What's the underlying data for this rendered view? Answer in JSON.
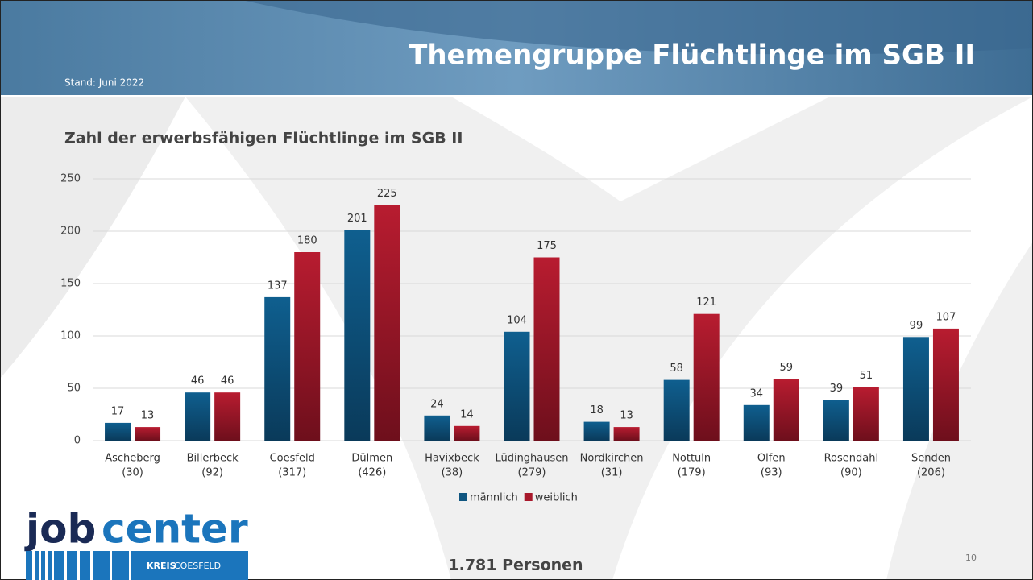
{
  "header": {
    "title": "Themengruppe Flüchtlinge im SGB II",
    "subtitle": "Stand: Juni 2022"
  },
  "chart_data": {
    "type": "bar",
    "title": "Zahl der erwerbsfähigen Flüchtlinge im SGB II",
    "categories": [
      [
        "Ascheberg",
        "(30)"
      ],
      [
        "Billerbeck",
        "(92)"
      ],
      [
        "Coesfeld",
        "(317)"
      ],
      [
        "Dülmen",
        "(426)"
      ],
      [
        "Havixbeck",
        "(38)"
      ],
      [
        "Lüdinghausen",
        "(279)"
      ],
      [
        "Nordkirchen",
        "(31)"
      ],
      [
        "Nottuln",
        "(179)"
      ],
      [
        "Olfen",
        "(93)"
      ],
      [
        "Rosendahl",
        "(90)"
      ],
      [
        "Senden",
        "(206)"
      ]
    ],
    "series": [
      {
        "name": "männlich",
        "color": "#0f5580",
        "values": [
          17,
          46,
          137,
          201,
          24,
          104,
          18,
          58,
          34,
          39,
          99
        ]
      },
      {
        "name": "weiblich",
        "color": "#a8182b",
        "values": [
          13,
          46,
          180,
          225,
          14,
          175,
          13,
          121,
          59,
          51,
          107
        ]
      }
    ],
    "ylim": [
      0,
      250
    ],
    "yticks": [
      0,
      50,
      100,
      150,
      200,
      250
    ],
    "grid": true,
    "legend": "bottom"
  },
  "footer": {
    "total": "1.781 Personen",
    "page": "10"
  },
  "logo": {
    "job": "job",
    "center": "center",
    "kreis": "KREIS",
    "coesfeld": "COESFELD"
  }
}
